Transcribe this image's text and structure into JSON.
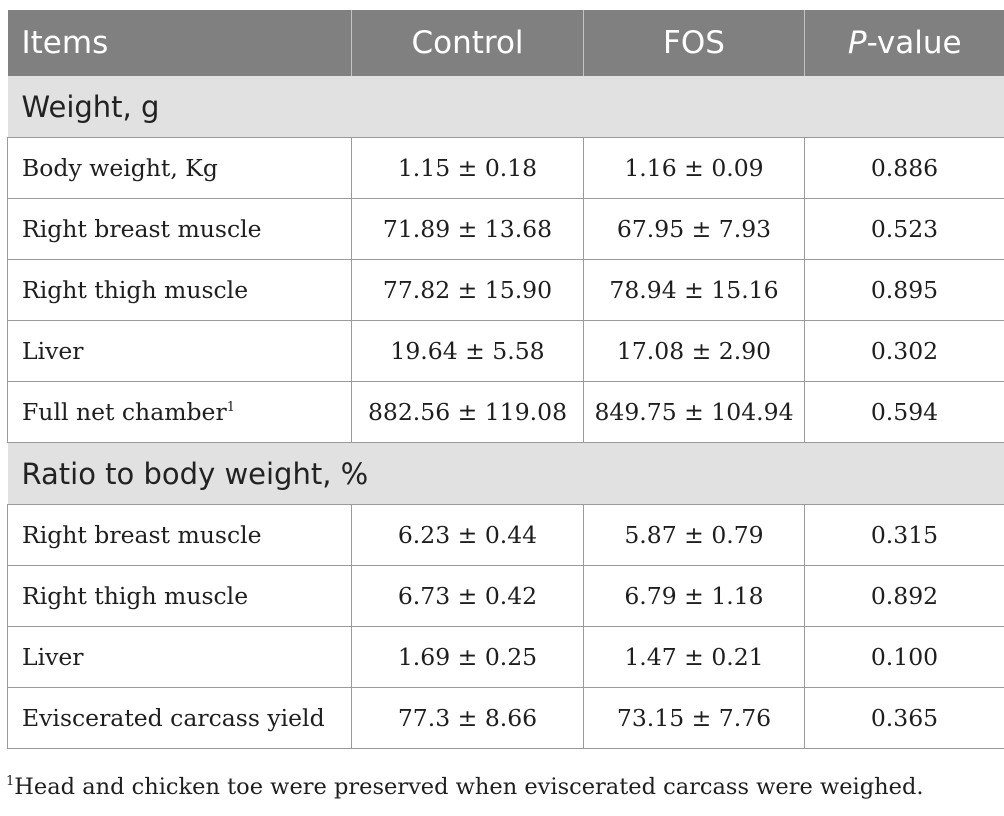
{
  "header": {
    "items": "Items",
    "control": "Control",
    "fos": "FOS",
    "p_italic": "P",
    "p_rest": "-value"
  },
  "sections": [
    {
      "title": "Weight, g",
      "rows": [
        {
          "label": "Body weight, Kg",
          "sup": "",
          "control": "1.15 ± 0.18",
          "fos": "1.16 ± 0.09",
          "p": "0.886"
        },
        {
          "label": "Right breast muscle",
          "sup": "",
          "control": "71.89 ± 13.68",
          "fos": "67.95 ± 7.93",
          "p": "0.523"
        },
        {
          "label": "Right thigh muscle",
          "sup": "",
          "control": "77.82 ± 15.90",
          "fos": "78.94 ± 15.16",
          "p": "0.895"
        },
        {
          "label": "Liver",
          "sup": "",
          "control": "19.64 ± 5.58",
          "fos": "17.08 ± 2.90",
          "p": "0.302"
        },
        {
          "label": "Full net chamber",
          "sup": "1",
          "control": "882.56 ± 119.08",
          "fos": "849.75 ± 104.94",
          "p": "0.594"
        }
      ]
    },
    {
      "title": "Ratio to body weight, %",
      "rows": [
        {
          "label": "Right breast muscle",
          "sup": "",
          "control": "6.23 ± 0.44",
          "fos": "5.87 ± 0.79",
          "p": "0.315"
        },
        {
          "label": "Right thigh muscle",
          "sup": "",
          "control": "6.73 ± 0.42",
          "fos": "6.79 ± 1.18",
          "p": "0.892"
        },
        {
          "label": "Liver",
          "sup": "",
          "control": "1.69 ± 0.25",
          "fos": "1.47 ± 0.21",
          "p": "0.100"
        },
        {
          "label": "Eviscerated carcass yield",
          "sup": "",
          "control": "77.3 ± 8.66",
          "fos": "73.15 ± 7.76",
          "p": "0.365"
        }
      ]
    }
  ],
  "footnote": {
    "mark": "1",
    "text": "Head and chicken toe were preserved when eviscerated carcass were weighed."
  }
}
